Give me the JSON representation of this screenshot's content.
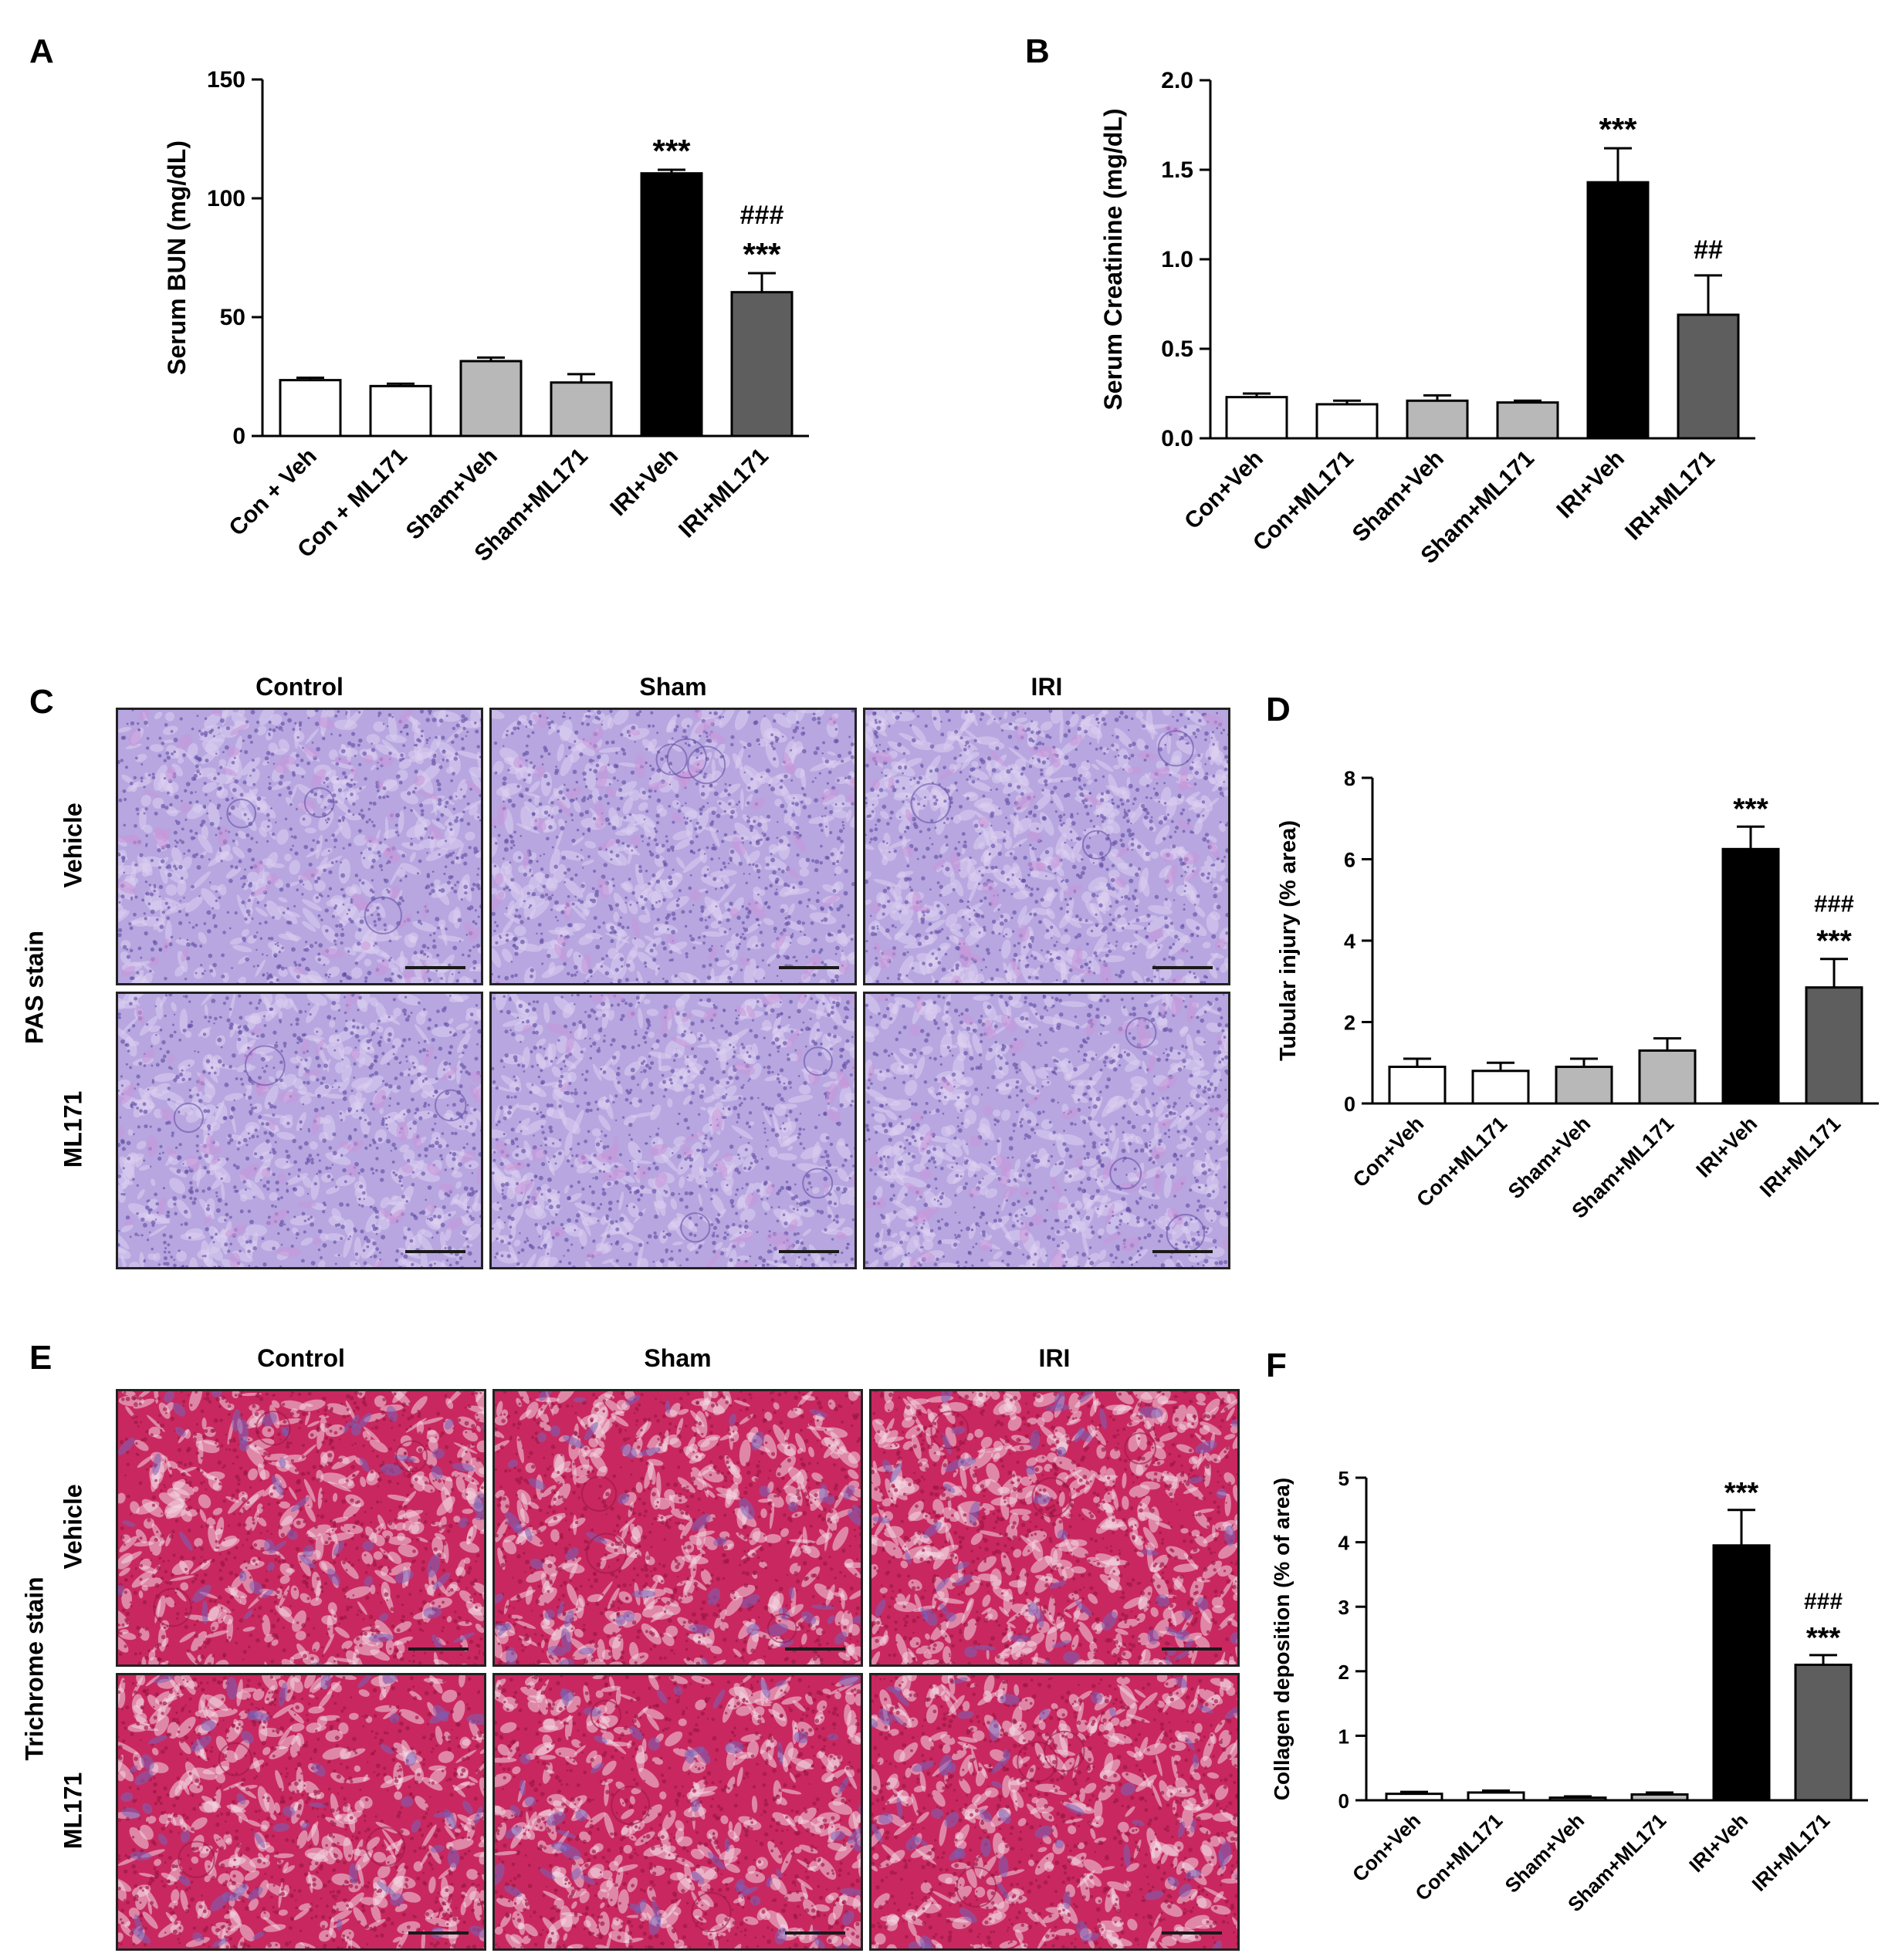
{
  "panels": {
    "a": "A",
    "b": "B",
    "c": "C",
    "d": "D",
    "e": "E",
    "f": "F"
  },
  "chart_data": [
    {
      "id": "A",
      "type": "bar",
      "ylabel": "Serum BUN (mg/dL)",
      "ylim": [
        0,
        150
      ],
      "yticks": [
        "0",
        "50",
        "100",
        "150"
      ],
      "categories": [
        "Con + Veh",
        "Con + ML171",
        "Sham+Veh",
        "Sham+ML171",
        "IRI+Veh",
        "IRI+ML171"
      ],
      "values": [
        23.5,
        21,
        31.5,
        22.5,
        110.5,
        60.5
      ],
      "errors": [
        1.0,
        1.0,
        1.5,
        3.5,
        1.5,
        8.0
      ],
      "colors": [
        "#ffffff",
        "#ffffff",
        "#b8b8b8",
        "#b8b8b8",
        "#000000",
        "#5e5e5e"
      ],
      "annotations": [
        "",
        "",
        "",
        "",
        "***",
        "###\n***"
      ]
    },
    {
      "id": "B",
      "type": "bar",
      "ylabel": "Serum Creatinine (mg/dL)",
      "ylim": [
        0,
        2.0
      ],
      "yticks": [
        "0.0",
        "0.5",
        "1.0",
        "1.5",
        "2.0"
      ],
      "categories": [
        "Con+Veh",
        "Con+ML171",
        "Sham+Veh",
        "Sham+ML171",
        "IRI+Veh",
        "IRI+ML171"
      ],
      "values": [
        0.23,
        0.19,
        0.21,
        0.2,
        1.43,
        0.69
      ],
      "errors": [
        0.02,
        0.02,
        0.03,
        0.01,
        0.19,
        0.22
      ],
      "colors": [
        "#ffffff",
        "#ffffff",
        "#b8b8b8",
        "#b8b8b8",
        "#000000",
        "#5e5e5e"
      ],
      "annotations": [
        "",
        "",
        "",
        "",
        "***",
        "##"
      ]
    },
    {
      "id": "D",
      "type": "bar",
      "ylabel": "Tubular injury (% area)",
      "ylim": [
        0,
        8
      ],
      "yticks": [
        "0",
        "2",
        "4",
        "6",
        "8"
      ],
      "categories": [
        "Con+Veh",
        "Con+ML171",
        "Sham+Veh",
        "Sham+ML171",
        "IRI+Veh",
        "IRI+ML171"
      ],
      "values": [
        0.9,
        0.8,
        0.9,
        1.3,
        6.25,
        2.85
      ],
      "errors": [
        0.2,
        0.2,
        0.2,
        0.3,
        0.55,
        0.7
      ],
      "colors": [
        "#ffffff",
        "#ffffff",
        "#b8b8b8",
        "#b8b8b8",
        "#000000",
        "#5e5e5e"
      ],
      "annotations": [
        "",
        "",
        "",
        "",
        "***",
        "###\n***"
      ]
    },
    {
      "id": "F",
      "type": "bar",
      "ylabel": "Collagen deposition (% of area)",
      "ylim": [
        0,
        5
      ],
      "yticks": [
        "0",
        "1",
        "2",
        "3",
        "4",
        "5"
      ],
      "categories": [
        "Con+Veh",
        "Con+ML171",
        "Sham+Veh",
        "Sham+ML171",
        "IRI+Veh",
        "IRI+ML171"
      ],
      "values": [
        0.1,
        0.12,
        0.04,
        0.09,
        3.95,
        2.1
      ],
      "errors": [
        0.03,
        0.03,
        0.02,
        0.03,
        0.55,
        0.15
      ],
      "colors": [
        "#ffffff",
        "#ffffff",
        "#b8b8b8",
        "#b8b8b8",
        "#000000",
        "#5e5e5e"
      ],
      "annotations": [
        "",
        "",
        "",
        "",
        "***",
        "###\n***"
      ]
    }
  ],
  "micrographs": [
    {
      "id": "C",
      "stain": "PAS stain",
      "columns": [
        "Control",
        "Sham",
        "IRI"
      ],
      "rows": [
        "Vehicle",
        "ML171"
      ],
      "palette": {
        "base": "#b7a6df",
        "dark": "#6452a8",
        "light": "#ddd0f0",
        "accent": "#c995d9"
      }
    },
    {
      "id": "E",
      "stain": "Trichrome stain",
      "columns": [
        "Control",
        "Sham",
        "IRI"
      ],
      "rows": [
        "Vehicle",
        "ML171"
      ],
      "palette": {
        "base": "#c8285f",
        "dark": "#9c1544",
        "light": "#f2d6e2",
        "accent": "#7862b8"
      }
    }
  ]
}
